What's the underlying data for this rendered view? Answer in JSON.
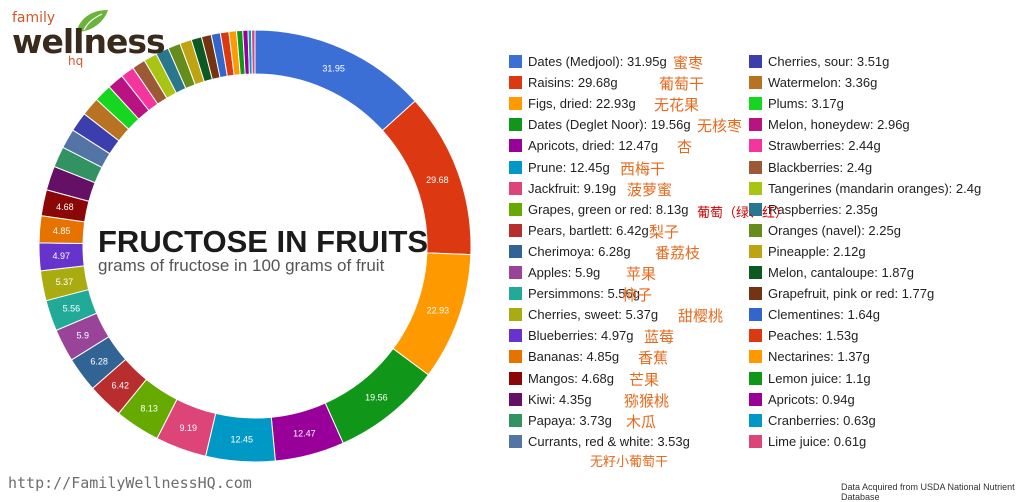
{
  "header": {
    "logo_small": "family",
    "logo_main": "wellness",
    "logo_hq": "hq"
  },
  "title": "FRUCTOSE IN FRUITS",
  "subtitle": "grams of fructose in 100 grams of fruit",
  "footer": {
    "url": "http://FamilyWellnessHQ.com",
    "source": "Data Acquired from USDA National Nutrient Database"
  },
  "extra_cn": [
    {
      "text": "葡萄（绿、红）",
      "color": "#cc0000"
    }
  ],
  "chart_data": {
    "type": "pie",
    "variant": "donut",
    "legend_position": "right",
    "unit": "g",
    "slices": [
      {
        "name": "Dates (Medjool)",
        "value": 31.95,
        "color": "#3b6fd6",
        "cn": "蜜枣",
        "label": "31.95"
      },
      {
        "name": "Raisins",
        "value": 29.68,
        "color": "#dc3912",
        "cn": "葡萄干",
        "label": "29.68"
      },
      {
        "name": "Figs, dried",
        "value": 22.93,
        "color": "#ff9900",
        "cn": "无花果",
        "label": "22.93"
      },
      {
        "name": "Dates (Deglet Noor)",
        "value": 19.56,
        "color": "#109618",
        "cn": "无核枣",
        "label": "19.56"
      },
      {
        "name": "Apricots, dried",
        "value": 12.47,
        "color": "#990099",
        "cn": "杏",
        "label": "12.47"
      },
      {
        "name": "Prune",
        "value": 12.45,
        "color": "#0099c6",
        "cn": "西梅干",
        "label": "12.45"
      },
      {
        "name": "Jackfruit",
        "value": 9.19,
        "color": "#dd4477",
        "cn": "菠萝蜜",
        "label": "9.19"
      },
      {
        "name": "Grapes, green or red",
        "value": 8.13,
        "color": "#66aa00",
        "cn": "",
        "label": "8.13"
      },
      {
        "name": "Pears, bartlett",
        "value": 6.42,
        "color": "#b82e2e",
        "cn": "梨子",
        "label": "6.42"
      },
      {
        "name": "Cherimoya",
        "value": 6.28,
        "color": "#316395",
        "cn": "番荔枝",
        "label": "6.28"
      },
      {
        "name": "Apples",
        "value": 5.9,
        "color": "#994499",
        "cn": "苹果",
        "label": "5.9"
      },
      {
        "name": "Persimmons",
        "value": 5.56,
        "color": "#22aa99",
        "cn": "柿子",
        "label": "5.56"
      },
      {
        "name": "Cherries, sweet",
        "value": 5.37,
        "color": "#aaaa11",
        "cn": "甜樱桃",
        "label": "5.37"
      },
      {
        "name": "Blueberries",
        "value": 4.97,
        "color": "#6633cc",
        "cn": "蓝莓",
        "label": "4.97"
      },
      {
        "name": "Bananas",
        "value": 4.85,
        "color": "#e67300",
        "cn": "香蕉",
        "label": "4.85"
      },
      {
        "name": "Mangos",
        "value": 4.68,
        "color": "#8b0707",
        "cn": "芒果",
        "label": "4.68"
      },
      {
        "name": "Kiwi",
        "value": 4.35,
        "color": "#651067",
        "cn": "猕猴桃",
        "label": ""
      },
      {
        "name": "Papaya",
        "value": 3.73,
        "color": "#329262",
        "cn": "木瓜",
        "label": ""
      },
      {
        "name": "Currants, red & white",
        "value": 3.53,
        "color": "#5574a6",
        "cn": "无籽小葡萄干",
        "label": ""
      },
      {
        "name": "Cherries, sour",
        "value": 3.51,
        "color": "#3b3eac",
        "cn": "",
        "label": ""
      },
      {
        "name": "Watermelon",
        "value": 3.36,
        "color": "#b77322",
        "cn": "",
        "label": ""
      },
      {
        "name": "Plums",
        "value": 3.17,
        "color": "#16d620",
        "cn": "",
        "label": ""
      },
      {
        "name": "Melon, honeydew",
        "value": 2.96,
        "color": "#b91383",
        "cn": "",
        "label": ""
      },
      {
        "name": "Strawberries",
        "value": 2.44,
        "color": "#f4359e",
        "cn": "",
        "label": ""
      },
      {
        "name": "Blackberries",
        "value": 2.4,
        "color": "#9c5935",
        "cn": "",
        "label": ""
      },
      {
        "name": "Tangerines (mandarin oranges)",
        "value": 2.4,
        "color": "#a9c413",
        "cn": "",
        "label": ""
      },
      {
        "name": "Raspberries",
        "value": 2.35,
        "color": "#2a778d",
        "cn": "",
        "label": ""
      },
      {
        "name": "Oranges (navel)",
        "value": 2.25,
        "color": "#668d1c",
        "cn": "",
        "label": ""
      },
      {
        "name": "Pineapple",
        "value": 2.12,
        "color": "#bea413",
        "cn": "",
        "label": ""
      },
      {
        "name": "Melon, cantaloupe",
        "value": 1.87,
        "color": "#0c5922",
        "cn": "",
        "label": ""
      },
      {
        "name": "Grapefruit, pink or red",
        "value": 1.77,
        "color": "#743411",
        "cn": "",
        "label": ""
      },
      {
        "name": "Clementines",
        "value": 1.64,
        "color": "#3366cc",
        "cn": "",
        "label": ""
      },
      {
        "name": "Peaches",
        "value": 1.53,
        "color": "#dc3912",
        "cn": "",
        "label": ""
      },
      {
        "name": "Nectarines",
        "value": 1.37,
        "color": "#ff9900",
        "cn": "",
        "label": ""
      },
      {
        "name": "Lemon juice",
        "value": 1.1,
        "color": "#109618",
        "cn": "",
        "label": ""
      },
      {
        "name": "Apricots",
        "value": 0.94,
        "color": "#990099",
        "cn": "",
        "label": ""
      },
      {
        "name": "Cranberries",
        "value": 0.63,
        "color": "#0099c6",
        "cn": "",
        "label": ""
      },
      {
        "name": "Lime juice",
        "value": 0.61,
        "color": "#dd4477",
        "cn": "",
        "label": ""
      }
    ]
  }
}
